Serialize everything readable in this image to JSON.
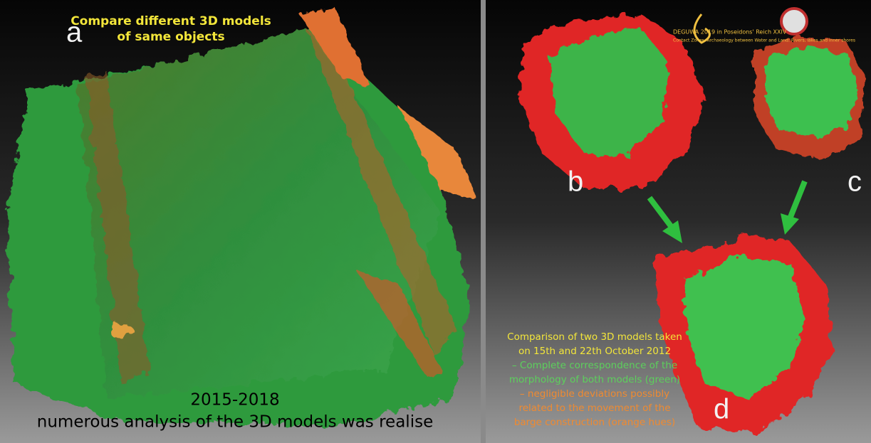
{
  "panels": {
    "a": {
      "label": "a",
      "heading": [
        "Compare different 3D models",
        "of same objects"
      ],
      "caption": [
        "2015-2018",
        "numerous analysis of the 3D models was realise"
      ]
    },
    "b": {
      "label": "b"
    },
    "c": {
      "label": "c"
    },
    "d": {
      "label": "d",
      "caption": [
        "Comparison of two 3D models taken",
        "on 15th and 22th October 2012",
        "– Complete correspondence of the",
        "morphology of both models (green)",
        "– negligible deviations possibly",
        "related to the movement of the",
        "barge construction (orange hues)"
      ]
    }
  },
  "logo": {
    "title": "DEGUWA 2019 in Poseidons' Reich XXIV",
    "subtitle": "Contact Zones. Archaeology between Water and Land: Rivers, lakes and inner shores"
  }
}
